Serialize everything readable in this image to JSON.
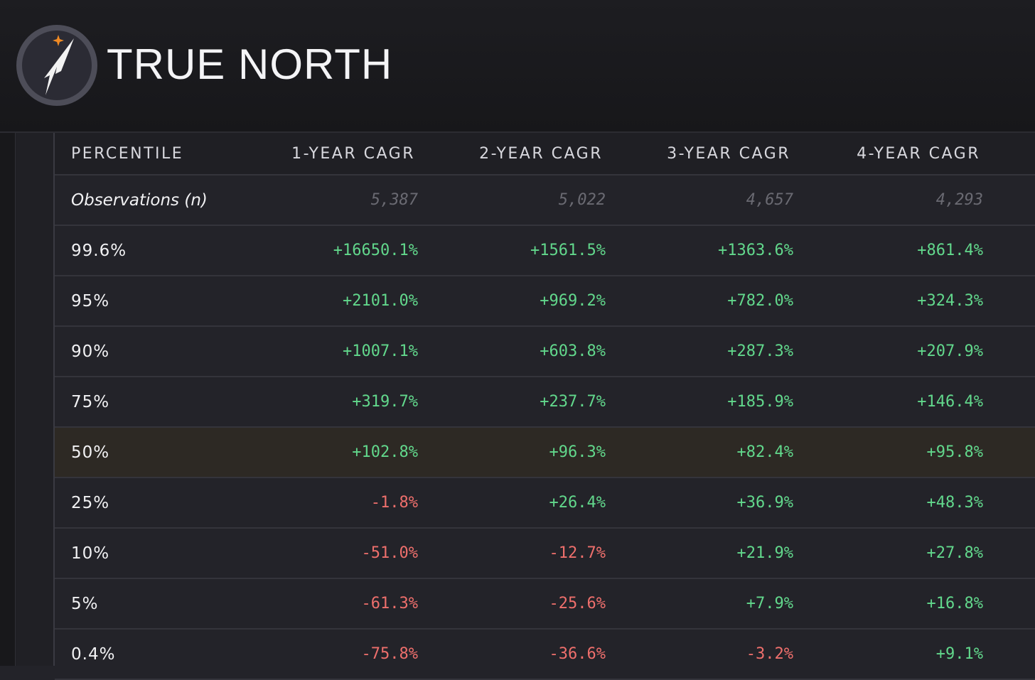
{
  "header": {
    "title": "TRUE NORTH"
  },
  "table": {
    "columns": [
      "PERCENTILE",
      "1-YEAR CAGR",
      "2-YEAR CAGR",
      "3-YEAR CAGR",
      "4-YEAR CAGR"
    ],
    "rows": [
      [
        "Observations (n)",
        "5,387",
        "5,022",
        "4,657",
        "4,293"
      ],
      [
        "99.6%",
        "+16650.1%",
        "+1561.5%",
        "+1363.6%",
        "+861.4%"
      ],
      [
        "95%",
        "+2101.0%",
        "+969.2%",
        "+782.0%",
        "+324.3%"
      ],
      [
        "90%",
        "+1007.1%",
        "+603.8%",
        "+287.3%",
        "+207.9%"
      ],
      [
        "75%",
        "+319.7%",
        "+237.7%",
        "+185.9%",
        "+146.4%"
      ],
      [
        "50%",
        "+102.8%",
        "+96.3%",
        "+82.4%",
        "+95.8%"
      ],
      [
        "25%",
        "-1.8%",
        "+26.4%",
        "+36.9%",
        "+48.3%"
      ],
      [
        "10%",
        "-51.0%",
        "-12.7%",
        "+21.9%",
        "+27.8%"
      ],
      [
        "5%",
        "-61.3%",
        "-25.6%",
        "+7.9%",
        "+16.8%"
      ],
      [
        "0.4%",
        "-75.8%",
        "-36.6%",
        "-3.2%",
        "+9.1%"
      ]
    ]
  }
}
